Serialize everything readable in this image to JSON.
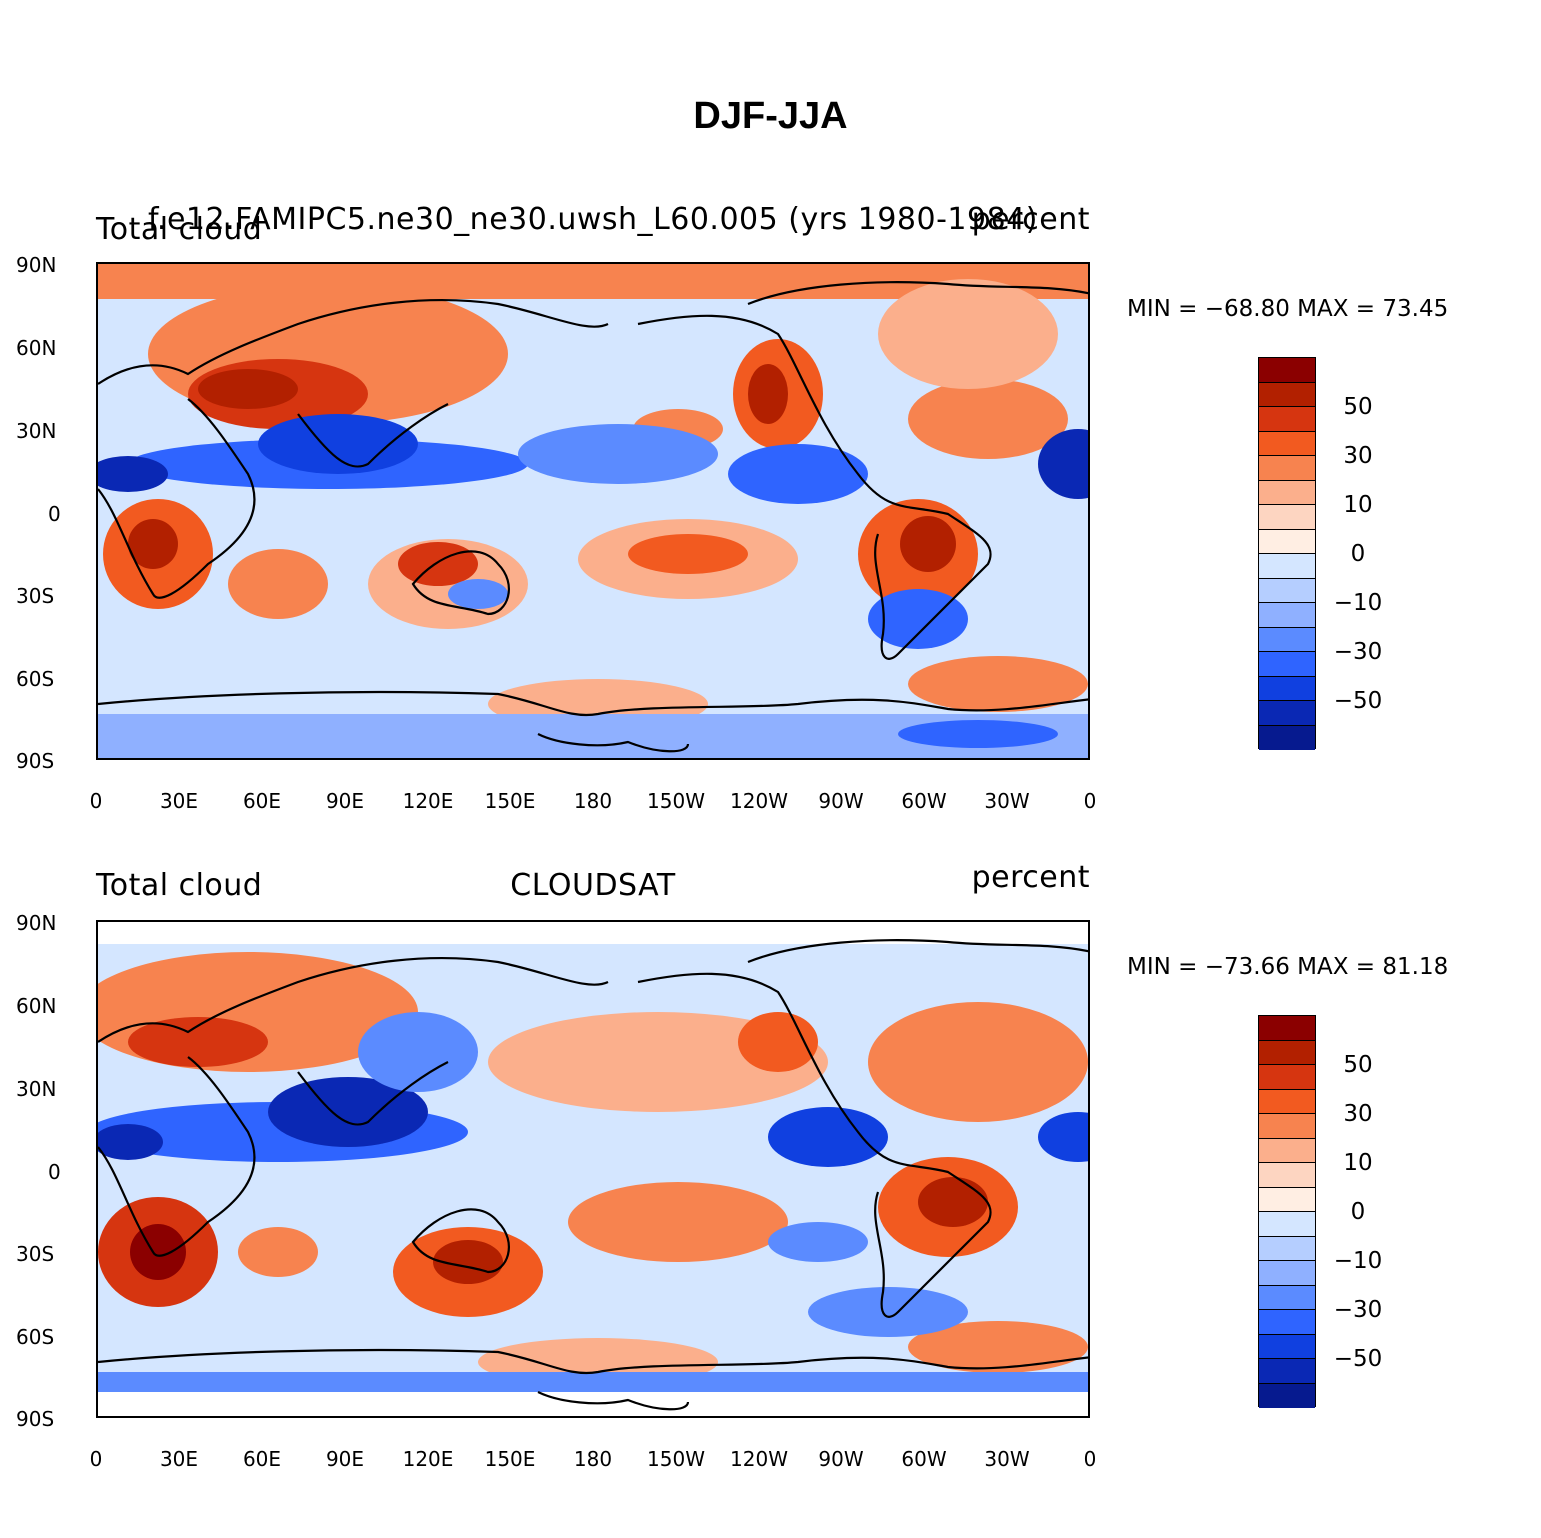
{
  "title": "DJF-JJA",
  "colors": {
    "levels": [
      "#8b0000",
      "#b22000",
      "#d63510",
      "#f25a20",
      "#f7834f",
      "#fbaf8c",
      "#fdd5c1",
      "#ffeee3",
      "#d4e6ff",
      "#b5ceff",
      "#8fb0ff",
      "#5b8bff",
      "#2f64ff",
      "#1040e0",
      "#0a28b4",
      "#061a8f"
    ],
    "coast": "#000000"
  },
  "panels": [
    {
      "left_title": "Total cloud",
      "center_title": "f.e12.FAMIPC5.ne30_ne30.uwsh_L60.005 (yrs 1980-1984)",
      "right_title": "percent",
      "stats": "MIN = −68.80  MAX =   73.45"
    },
    {
      "left_title": "Total cloud",
      "center_title": "CLOUDSAT",
      "right_title": "percent",
      "stats": "MIN = −73.66  MAX =  81.18"
    }
  ],
  "y_ticks": [
    "90N",
    "60N",
    "30N",
    "0",
    "30S",
    "60S",
    "90S"
  ],
  "x_ticks": [
    "0",
    "30E",
    "60E",
    "90E",
    "120E",
    "150E",
    "180",
    "150W",
    "120W",
    "90W",
    "60W",
    "30W",
    "0"
  ],
  "colorbar_labels": [
    "50",
    "30",
    "10",
    "0",
    "−10",
    "−30",
    "−50"
  ],
  "chart_data": [
    {
      "type": "heatmap",
      "projection": "cylindrical equidistant, 0–360 longitude",
      "title": "DJF-JJA",
      "left_title": "Total cloud",
      "center_title": "f.e12.FAMIPC5.ne30_ne30.uwsh_L60.005 (yrs 1980-1984)",
      "units": "percent",
      "min": -68.8,
      "max": 73.45,
      "xlim": [
        0,
        360
      ],
      "ylim": [
        -90,
        90
      ],
      "levels": [
        -60,
        -50,
        -40,
        -30,
        -20,
        -10,
        -5,
        0,
        5,
        10,
        20,
        30,
        40,
        50,
        60
      ]
    },
    {
      "type": "heatmap",
      "projection": "cylindrical equidistant, 0–360 longitude",
      "left_title": "Total cloud",
      "center_title": "CLOUDSAT",
      "units": "percent",
      "min": -73.66,
      "max": 81.18,
      "xlim": [
        0,
        360
      ],
      "ylim": [
        -90,
        90
      ],
      "levels": [
        -60,
        -50,
        -40,
        -30,
        -20,
        -10,
        -5,
        0,
        5,
        10,
        20,
        30,
        40,
        50,
        60
      ]
    }
  ]
}
